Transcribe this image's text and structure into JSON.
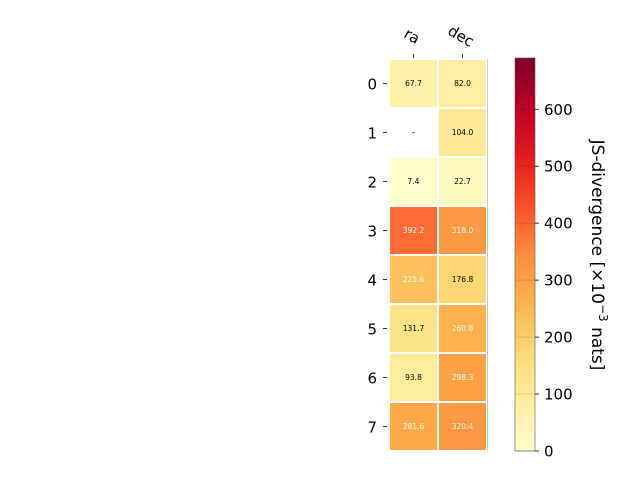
{
  "chart_data": {
    "type": "heatmap",
    "columns": [
      "ra",
      "dec"
    ],
    "rows": [
      "0",
      "1",
      "2",
      "3",
      "4",
      "5",
      "6",
      "7"
    ],
    "values": [
      [
        67.7,
        82.0
      ],
      [
        null,
        104.0
      ],
      [
        7.4,
        22.7
      ],
      [
        392.2,
        318.0
      ],
      [
        225.6,
        176.8
      ],
      [
        131.7,
        260.8
      ],
      [
        93.8,
        298.3
      ],
      [
        281.6,
        320.4
      ]
    ],
    "cell_labels": [
      [
        "67.7",
        "82.0"
      ],
      [
        "–",
        "104.0"
      ],
      [
        "7.4",
        "22.7"
      ],
      [
        "392.2",
        "318.0"
      ],
      [
        "225.6",
        "176.8"
      ],
      [
        "131.7",
        "260.8"
      ],
      [
        "93.8",
        "298.3"
      ],
      [
        "281.6",
        "320.4"
      ]
    ],
    "colorbar": {
      "label_main": "JS-divergence [×10",
      "label_exp": "−3",
      "label_tail": " nats]",
      "range": [
        0,
        690
      ],
      "ticks": [
        "0",
        "100",
        "200",
        "300",
        "400",
        "500",
        "600"
      ],
      "tick_values": [
        0,
        100,
        200,
        300,
        400,
        500,
        600
      ],
      "colormap": "YlOrRd"
    },
    "colors": {
      "cmap_stops": [
        "#ffffcc",
        "#ffeda0",
        "#fed976",
        "#feb24c",
        "#fd8d3c",
        "#fc4e2a",
        "#e31a1c",
        "#bd0026",
        "#800026"
      ],
      "text_dark": "#000000",
      "text_light": "#ffffff",
      "cell_border": "#ffffff",
      "missing_fill": "#ffffff"
    }
  }
}
